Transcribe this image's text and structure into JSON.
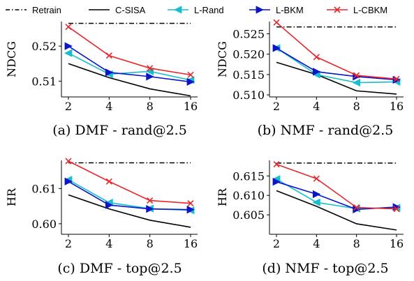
{
  "legend": [
    {
      "name": "Retrain",
      "color": "#000000",
      "dash": "dashdot",
      "marker": "none"
    },
    {
      "name": "C-SISA",
      "color": "#000000",
      "dash": "solid",
      "marker": "none"
    },
    {
      "name": "L-Rand",
      "color": "#17becf",
      "dash": "solid",
      "marker": "triangle-left"
    },
    {
      "name": "L-BKM",
      "color": "#0a14c8",
      "dash": "solid",
      "marker": "triangle-right"
    },
    {
      "name": "L-CBKM",
      "color": "#e8262c",
      "dash": "solid",
      "marker": "x"
    }
  ],
  "chart_data": [
    {
      "type": "line",
      "caption": "(a) DMF - rand@2.5",
      "ylabel": "NDCG",
      "x": [
        2,
        4,
        8,
        16
      ],
      "x_ticks": [
        "2",
        "4",
        "8",
        "16"
      ],
      "ylim": [
        0.5055,
        0.527
      ],
      "y_ticks": [
        0.51,
        0.52
      ],
      "y_tick_labels": [
        "0.51",
        "0.52"
      ],
      "retrain": 0.5265,
      "series": [
        {
          "name": "C-SISA",
          "values": [
            0.515,
            0.511,
            0.5078,
            0.5058
          ]
        },
        {
          "name": "L-Rand",
          "values": [
            0.518,
            0.512,
            0.5128,
            0.5103
          ]
        },
        {
          "name": "L-BKM",
          "values": [
            0.52,
            0.5125,
            0.5113,
            0.5098
          ]
        },
        {
          "name": "L-CBKM",
          "values": [
            0.5255,
            0.5173,
            0.5137,
            0.5118
          ]
        }
      ]
    },
    {
      "type": "line",
      "caption": "(b) NMF - rand@2.5",
      "ylabel": "NDCG",
      "x": [
        2,
        4,
        8,
        16
      ],
      "x_ticks": [
        "2",
        "4",
        "8",
        "16"
      ],
      "ylim": [
        0.5095,
        0.528
      ],
      "y_ticks": [
        0.51,
        0.515,
        0.52,
        0.525
      ],
      "y_tick_labels": [
        "0.510",
        "0.515",
        "0.520",
        "0.525"
      ],
      "retrain": 0.5267,
      "series": [
        {
          "name": "C-SISA",
          "values": [
            0.518,
            0.515,
            0.511,
            0.5102
          ]
        },
        {
          "name": "L-Rand",
          "values": [
            0.5215,
            0.515,
            0.513,
            0.5132
          ]
        },
        {
          "name": "L-BKM",
          "values": [
            0.5215,
            0.5157,
            0.5145,
            0.5137
          ]
        },
        {
          "name": "L-CBKM",
          "values": [
            0.5278,
            0.5193,
            0.5148,
            0.5139
          ]
        }
      ]
    },
    {
      "type": "line",
      "caption": "(c) DMF - top@2.5",
      "ylabel": "HR",
      "x": [
        2,
        4,
        8,
        16
      ],
      "x_ticks": [
        "2",
        "4",
        "8",
        "16"
      ],
      "ylim": [
        0.597,
        0.618
      ],
      "y_ticks": [
        0.6,
        0.61
      ],
      "y_tick_labels": [
        "0.60",
        "0.61"
      ],
      "retrain": 0.6173,
      "series": [
        {
          "name": "C-SISA",
          "values": [
            0.6082,
            0.6042,
            0.601,
            0.599
          ]
        },
        {
          "name": "L-Rand",
          "values": [
            0.6125,
            0.606,
            0.6043,
            0.6038
          ]
        },
        {
          "name": "L-BKM",
          "values": [
            0.612,
            0.6053,
            0.6042,
            0.604
          ]
        },
        {
          "name": "L-CBKM",
          "values": [
            0.6178,
            0.612,
            0.6066,
            0.6058
          ]
        }
      ]
    },
    {
      "type": "line",
      "caption": "(d) NMF - top@2.5",
      "ylabel": "HR",
      "x": [
        2,
        4,
        8,
        16
      ],
      "x_ticks": [
        "2",
        "4",
        "8",
        "16"
      ],
      "ylim": [
        0.6,
        0.619
      ],
      "y_ticks": [
        0.605,
        0.61,
        0.615
      ],
      "y_tick_labels": [
        "0.605",
        "0.610",
        "0.615"
      ],
      "retrain": 0.6183,
      "series": [
        {
          "name": "C-SISA",
          "values": [
            0.6112,
            0.6072,
            0.6027,
            0.6011
          ]
        },
        {
          "name": "L-Rand",
          "values": [
            0.6142,
            0.6082,
            0.6066,
            0.6068
          ]
        },
        {
          "name": "L-BKM",
          "values": [
            0.6135,
            0.6103,
            0.6064,
            0.607
          ]
        },
        {
          "name": "L-CBKM",
          "values": [
            0.618,
            0.6143,
            0.6069,
            0.6065
          ]
        }
      ]
    }
  ]
}
